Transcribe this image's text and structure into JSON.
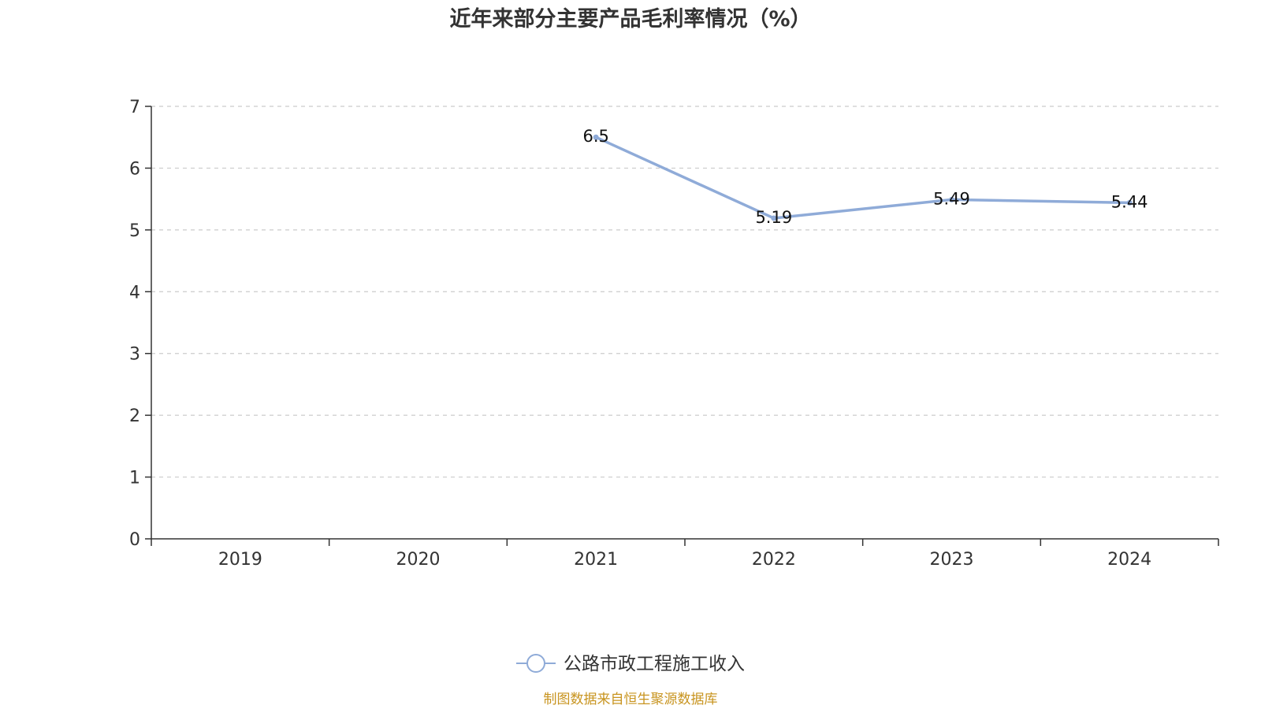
{
  "chart_data": {
    "type": "line",
    "title": "近年来部分主要产品毛利率情况（%）",
    "categories": [
      "2019",
      "2020",
      "2021",
      "2022",
      "2023",
      "2024"
    ],
    "series": [
      {
        "name": "公路市政工程施工收入",
        "values": [
          null,
          null,
          6.5,
          5.19,
          5.49,
          5.44
        ],
        "color": "#8fabd8"
      }
    ],
    "ylim": [
      0,
      7
    ],
    "yticks": [
      0,
      1,
      2,
      3,
      4,
      5,
      6,
      7
    ],
    "grid": true,
    "legend_position": "bottom-center"
  },
  "footer": {
    "source": "制图数据来自恒生聚源数据库",
    "source_color": "#c8941f"
  }
}
